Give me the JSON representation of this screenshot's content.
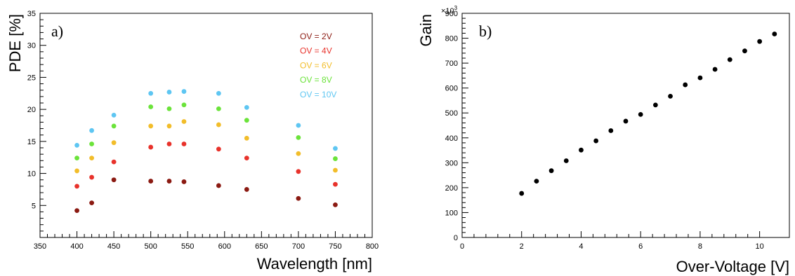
{
  "chart_data": [
    {
      "type": "scatter",
      "panel_label": "a)",
      "xlabel": "Wavelength [nm]",
      "ylabel": "PDE [%]",
      "xlim": [
        350,
        800
      ],
      "ylim": [
        0,
        35
      ],
      "xticks": [
        350,
        400,
        450,
        500,
        550,
        600,
        650,
        700,
        750,
        800
      ],
      "yticks": [
        5,
        10,
        15,
        20,
        25,
        30,
        35
      ],
      "legend_position": "top-right",
      "x": [
        400,
        420,
        450,
        500,
        525,
        545,
        592,
        630,
        700,
        750
      ],
      "series": [
        {
          "name": "OV = 2V",
          "color": "#8b1a12",
          "values": [
            4.2,
            5.4,
            9.0,
            8.8,
            8.8,
            8.7,
            8.1,
            7.5,
            6.1,
            5.1
          ]
        },
        {
          "name": "OV = 4V",
          "color": "#e8322b",
          "values": [
            8.0,
            9.4,
            11.8,
            14.1,
            14.6,
            14.6,
            13.8,
            12.4,
            10.3,
            8.3
          ]
        },
        {
          "name": "OV = 6V",
          "color": "#f2bd2a",
          "values": [
            10.4,
            12.4,
            14.8,
            17.4,
            17.4,
            18.1,
            17.6,
            15.5,
            13.1,
            10.5
          ]
        },
        {
          "name": "OV = 8V",
          "color": "#6be33a",
          "values": [
            12.4,
            14.6,
            17.4,
            20.4,
            20.1,
            20.7,
            20.1,
            18.3,
            15.6,
            12.3
          ]
        },
        {
          "name": "OV = 10V",
          "color": "#5ec6f2",
          "values": [
            14.4,
            16.7,
            19.1,
            22.5,
            22.7,
            22.8,
            22.5,
            20.3,
            17.5,
            13.9
          ]
        }
      ]
    },
    {
      "type": "scatter",
      "panel_label": "b)",
      "xlabel": "Over-Voltage [V]",
      "ylabel": "Gain",
      "xlim": [
        0,
        11
      ],
      "ylim": [
        0,
        900
      ],
      "xticks": [
        0,
        2,
        4,
        6,
        8,
        10
      ],
      "yticks": [
        0,
        100,
        200,
        300,
        400,
        500,
        600,
        700,
        800,
        900
      ],
      "y_multiplier": "×10",
      "y_multiplier_exp": "3",
      "series": [
        {
          "color": "#000000",
          "x": [
            2,
            2.5,
            3,
            3.5,
            4,
            4.5,
            5,
            5.5,
            6,
            6.5,
            7,
            7.5,
            8,
            8.5,
            9,
            9.5,
            10,
            10.5
          ],
          "values": [
            177,
            226,
            268,
            308,
            351,
            388,
            429,
            467,
            494,
            532,
            567,
            613,
            641,
            675,
            714,
            749,
            787,
            817
          ]
        }
      ]
    }
  ]
}
